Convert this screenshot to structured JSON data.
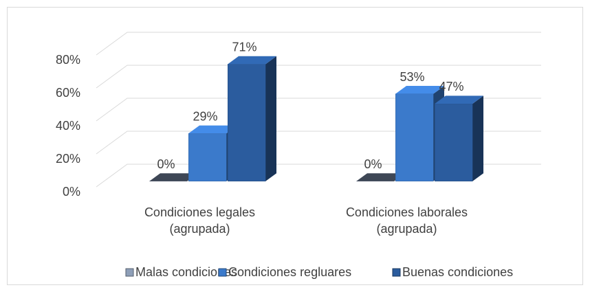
{
  "chart_data": {
    "type": "bar3d",
    "categories": [
      "Condiciones legales (agrupada)",
      "Condiciones laborales (agrupada)"
    ],
    "series": [
      {
        "name": "Malas condiciones",
        "color": "#8e9fb8",
        "values": [
          0,
          0
        ],
        "value_labels": [
          "0%",
          "0%"
        ]
      },
      {
        "name": "Condiciones regluares",
        "color": "#3b7acb",
        "values": [
          29,
          53
        ],
        "value_labels": [
          "29%",
          "53%"
        ]
      },
      {
        "name": "Buenas condiciones",
        "color": "#2b5c9e",
        "values": [
          71,
          47
        ],
        "value_labels": [
          "71%",
          "47%"
        ]
      }
    ],
    "ylim": [
      0,
      80
    ],
    "yticks": [
      {
        "value": 0,
        "label": "0%"
      },
      {
        "value": 20,
        "label": "20%"
      },
      {
        "value": 40,
        "label": "40%"
      },
      {
        "value": 60,
        "label": "60%"
      },
      {
        "value": 80,
        "label": "80%"
      }
    ],
    "grid": true,
    "legend": "bottom"
  }
}
